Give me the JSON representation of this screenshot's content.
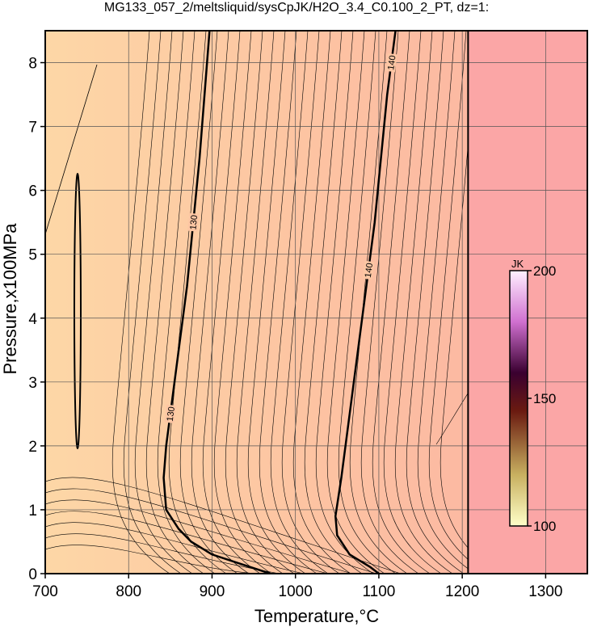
{
  "chart_data": {
    "type": "contour",
    "title": "MG133_057_2/meltsliquid/sysCpJK/H2O_3.4_C0.100_2_PT, dz=1:",
    "x_label": "Temperature,°C",
    "y_label": "Pressure,x100MPa",
    "xlim": [
      700,
      1350
    ],
    "ylim": [
      0,
      8.5
    ],
    "xticks": [
      700,
      800,
      900,
      1000,
      1100,
      1200,
      1300
    ],
    "yticks": [
      0,
      1,
      2,
      3,
      4,
      5,
      6,
      7,
      8
    ],
    "grid": true,
    "boundary_x": 1207,
    "series": [
      {
        "name": "130",
        "color": "#000000",
        "x": [
          970,
          935,
          900,
          875,
          860,
          845,
          842,
          845,
          855,
          870,
          885,
          897
        ],
        "values": [
          0,
          0.15,
          0.3,
          0.5,
          0.7,
          1.0,
          1.5,
          2.0,
          3.0,
          4.5,
          6.5,
          8.5
        ]
      },
      {
        "name": "140",
        "color": "#000000",
        "x": [
          1100,
          1090,
          1065,
          1050,
          1048,
          1055,
          1065,
          1080,
          1095,
          1110,
          1120
        ],
        "values": [
          0,
          0.1,
          0.3,
          0.6,
          0.9,
          1.5,
          2.5,
          4.0,
          5.5,
          7.5,
          8.5
        ]
      }
    ],
    "colorbar": {
      "label": "JK",
      "lim": [
        100,
        200
      ],
      "ticks": [
        100,
        150,
        200
      ]
    }
  }
}
